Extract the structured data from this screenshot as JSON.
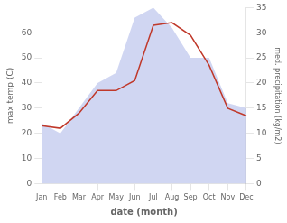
{
  "chart_data": {
    "type": "line",
    "categories": [
      "Jan",
      "Feb",
      "Mar",
      "Apr",
      "May",
      "Jun",
      "Jul",
      "Aug",
      "Sep",
      "Oct",
      "Nov",
      "Dec"
    ],
    "series": [
      {
        "type": "area",
        "color": "#aab4e8",
        "axis": "y2",
        "values": [
          12,
          10,
          15,
          20,
          22,
          33,
          35,
          31,
          25,
          25,
          16,
          15
        ]
      },
      {
        "type": "line",
        "color": "#c0392b",
        "values": [
          23,
          22,
          28,
          37,
          37,
          41,
          63,
          64,
          59,
          47,
          30,
          27
        ]
      }
    ],
    "xlabel": "date (month)",
    "ylabel": "max temp (C)",
    "y2label": "med. precipitation (kg/m2)",
    "ylim": [
      0,
      70
    ],
    "yticks": [
      0,
      10,
      20,
      30,
      40,
      50,
      60
    ],
    "y2lim": [
      0,
      35
    ],
    "y2ticks": [
      0,
      5,
      10,
      15,
      20,
      25,
      30,
      35
    ],
    "grid": false
  }
}
